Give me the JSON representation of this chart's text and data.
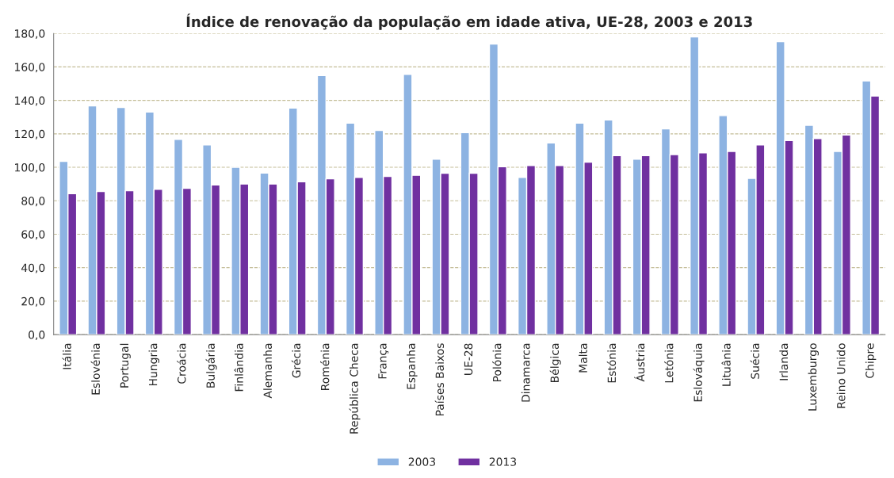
{
  "chart_data": {
    "type": "bar",
    "title": "Índice de renovação da população em idade ativa, UE-28, 2003 e 2013",
    "categories": [
      "Itália",
      "Eslovénia",
      "Portugal",
      "Hungria",
      "Croácia",
      "Bulgária",
      "Finlândia",
      "Alemanha",
      "Grécia",
      "Roménia",
      "República Checa",
      "França",
      "Espanha",
      "Países Baixos",
      "UE-28",
      "Polónia",
      "Dinamarca",
      "Bélgica",
      "Malta",
      "Estónia",
      "Áustria",
      "Letónia",
      "Eslováquia",
      "Lituânia",
      "Suécia",
      "Irlanda",
      "Luxemburgo",
      "Reino Unido",
      "Chipre"
    ],
    "series": [
      {
        "name": "2003",
        "color": "#8db3e2",
        "values": [
          103.5,
          136.7,
          135.8,
          133.0,
          116.7,
          113.4,
          100.0,
          96.6,
          135.4,
          154.9,
          126.4,
          122.0,
          155.6,
          104.9,
          120.7,
          173.7,
          94.0,
          114.6,
          126.4,
          128.3,
          104.9,
          123.0,
          178.0,
          130.9,
          93.4,
          175.1,
          125.1,
          109.5,
          151.7
        ]
      },
      {
        "name": "2013",
        "color": "#7030a0",
        "values": [
          84.2,
          85.5,
          86.0,
          86.8,
          87.5,
          89.5,
          90.0,
          90.0,
          91.3,
          93.1,
          93.9,
          94.6,
          95.2,
          96.5,
          96.5,
          100.4,
          101.1,
          101.1,
          103.1,
          107.0,
          107.0,
          107.6,
          108.7,
          109.5,
          113.4,
          116.0,
          117.2,
          119.3,
          142.6
        ]
      }
    ],
    "ylim": [
      0,
      180
    ],
    "yticks": [
      {
        "value": 0,
        "label": "0,0"
      },
      {
        "value": 20,
        "label": "20,0"
      },
      {
        "value": 40,
        "label": "40,0"
      },
      {
        "value": 60,
        "label": "60,0"
      },
      {
        "value": 80,
        "label": "80,0"
      },
      {
        "value": 100,
        "label": "100,0"
      },
      {
        "value": 120,
        "label": "120,0"
      },
      {
        "value": 140,
        "label": "140,0"
      },
      {
        "value": 160,
        "label": "160,0"
      },
      {
        "value": 180,
        "label": "180,0"
      }
    ],
    "grid": "y",
    "legend": "bottom"
  }
}
